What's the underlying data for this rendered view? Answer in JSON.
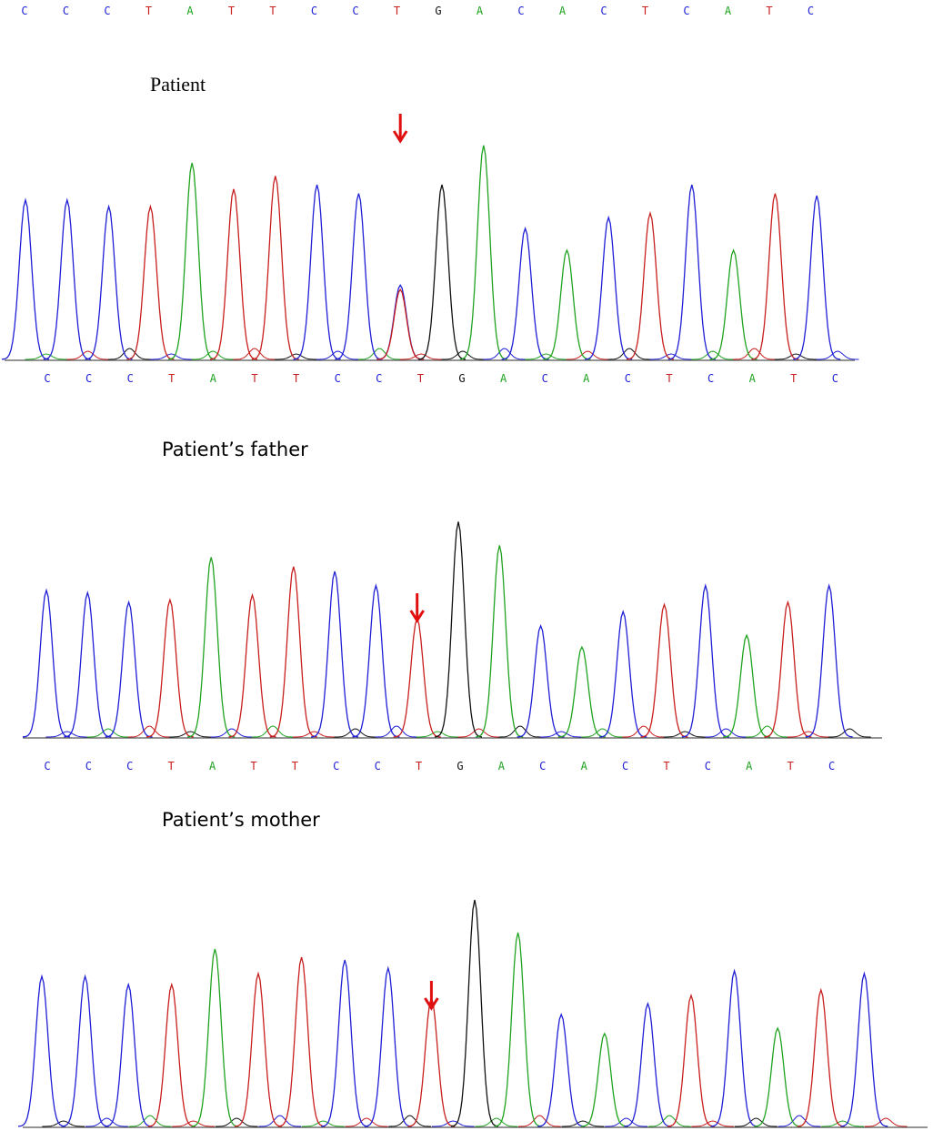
{
  "colors": {
    "A": "#1fa31f",
    "C": "#1f1fd6",
    "G": "#111111",
    "T": "#c81e1e",
    "arrow": "#e01010",
    "baseline": "#555555"
  },
  "chart_data": [
    {
      "type": "line",
      "label": "Patient",
      "sequence": [
        "C",
        "C",
        "C",
        "T",
        "A",
        "T",
        "T",
        "C",
        "C",
        "T",
        "G",
        "A",
        "C",
        "A",
        "C",
        "T",
        "C",
        "A",
        "T",
        "C"
      ],
      "sequence_top": [
        "C",
        "C",
        "C",
        "T",
        "A",
        "T",
        "T",
        "C",
        "C",
        "T",
        "G",
        "A",
        "C",
        "A",
        "C",
        "T",
        "C",
        "A",
        "T",
        "C"
      ],
      "peak_heights": [
        0.73,
        0.73,
        0.7,
        0.7,
        0.9,
        0.78,
        0.84,
        0.8,
        0.76,
        0.64,
        0.8,
        0.98,
        0.6,
        0.5,
        0.65,
        0.67,
        0.8,
        0.5,
        0.76,
        0.75
      ],
      "variant_position": 10,
      "variant_peaks": [
        {
          "base": "C",
          "height": 0.34
        },
        {
          "base": "T",
          "height": 0.32
        }
      ]
    },
    {
      "type": "line",
      "label": "Patient’s father",
      "sequence": [
        "C",
        "C",
        "C",
        "T",
        "A",
        "T",
        "T",
        "C",
        "C",
        "T",
        "G",
        "A",
        "C",
        "A",
        "C",
        "T",
        "C",
        "A",
        "T",
        "C"
      ],
      "peak_heights": [
        0.62,
        0.61,
        0.57,
        0.58,
        0.76,
        0.6,
        0.72,
        0.7,
        0.64,
        0.5,
        0.91,
        0.81,
        0.47,
        0.38,
        0.53,
        0.56,
        0.64,
        0.43,
        0.57,
        0.64
      ],
      "variant_position": 10,
      "variant_peaks": [
        {
          "base": "T",
          "height": 0.5
        }
      ]
    },
    {
      "type": "line",
      "label": "Patient’s mother",
      "sequence": [
        "C",
        "C",
        "C",
        "T",
        "A",
        "T",
        "T",
        "C",
        "C",
        "T",
        "G",
        "A",
        "C",
        "A",
        "C",
        "T",
        "C",
        "A",
        "T",
        "C"
      ],
      "peak_heights": [
        0.55,
        0.55,
        0.52,
        0.52,
        0.65,
        0.56,
        0.62,
        0.61,
        0.58,
        0.47,
        0.83,
        0.71,
        0.41,
        0.34,
        0.45,
        0.48,
        0.57,
        0.36,
        0.5,
        0.56
      ],
      "variant_position": 10,
      "variant_peaks": [
        {
          "base": "T",
          "height": 0.47
        }
      ]
    }
  ]
}
